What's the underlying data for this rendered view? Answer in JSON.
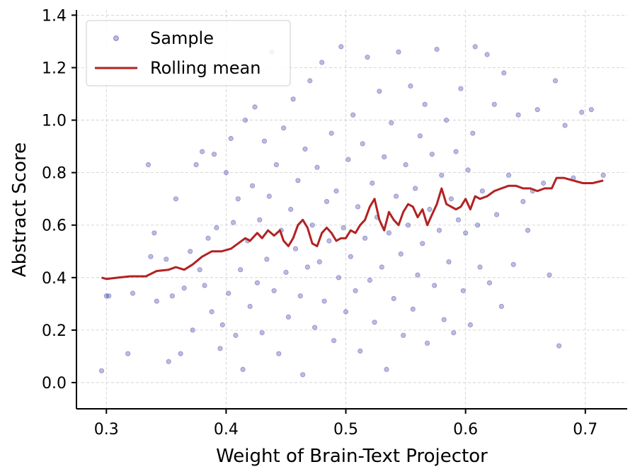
{
  "chart_data": {
    "type": "scatter",
    "title": "",
    "xlabel": "Weight of Brain-Text Projector",
    "ylabel": "Abstract Score",
    "xlim": [
      0.275,
      0.735
    ],
    "ylim": [
      -0.1,
      1.42
    ],
    "xticks": [
      0.3,
      0.4,
      0.5,
      0.6,
      0.7
    ],
    "xtick_labels": [
      "0.3",
      "0.4",
      "0.5",
      "0.6",
      "0.7"
    ],
    "yticks": [
      0.0,
      0.2,
      0.4,
      0.6,
      0.8,
      1.0,
      1.2,
      1.4
    ],
    "ytick_labels": [
      "0.0",
      "0.2",
      "0.4",
      "0.6",
      "0.8",
      "1.0",
      "1.2",
      "1.4"
    ],
    "grid": true,
    "legend_position": "top-left",
    "series": [
      {
        "name": "Sample",
        "kind": "scatter",
        "color": "#3b3ba6",
        "points": [
          [
            0.296,
            0.045
          ],
          [
            0.3,
            0.33
          ],
          [
            0.302,
            0.33
          ],
          [
            0.318,
            0.11
          ],
          [
            0.322,
            0.34
          ],
          [
            0.335,
            0.83
          ],
          [
            0.337,
            0.48
          ],
          [
            0.34,
            0.57
          ],
          [
            0.342,
            0.31
          ],
          [
            0.35,
            0.47
          ],
          [
            0.352,
            0.08
          ],
          [
            0.355,
            0.33
          ],
          [
            0.358,
            0.7
          ],
          [
            0.362,
            0.11
          ],
          [
            0.365,
            0.36
          ],
          [
            0.37,
            0.5
          ],
          [
            0.372,
            0.2
          ],
          [
            0.375,
            0.83
          ],
          [
            0.378,
            0.43
          ],
          [
            0.38,
            0.88
          ],
          [
            0.382,
            0.37
          ],
          [
            0.385,
            0.55
          ],
          [
            0.388,
            0.27
          ],
          [
            0.39,
            0.87
          ],
          [
            0.392,
            0.59
          ],
          [
            0.395,
            0.13
          ],
          [
            0.397,
            0.22
          ],
          [
            0.4,
            0.8
          ],
          [
            0.402,
            0.34
          ],
          [
            0.404,
            0.93
          ],
          [
            0.406,
            0.61
          ],
          [
            0.408,
            0.18
          ],
          [
            0.41,
            0.7
          ],
          [
            0.412,
            0.43
          ],
          [
            0.414,
            0.05
          ],
          [
            0.416,
            1.0
          ],
          [
            0.418,
            0.54
          ],
          [
            0.42,
            0.29
          ],
          [
            0.422,
            0.75
          ],
          [
            0.424,
            1.05
          ],
          [
            0.426,
            0.38
          ],
          [
            0.428,
            0.62
          ],
          [
            0.43,
            0.19
          ],
          [
            0.432,
            0.92
          ],
          [
            0.434,
            0.47
          ],
          [
            0.436,
            0.71
          ],
          [
            0.438,
            1.26
          ],
          [
            0.44,
            0.35
          ],
          [
            0.442,
            0.83
          ],
          [
            0.444,
            0.11
          ],
          [
            0.446,
            0.58
          ],
          [
            0.448,
            0.97
          ],
          [
            0.45,
            0.42
          ],
          [
            0.452,
            0.25
          ],
          [
            0.454,
            0.66
          ],
          [
            0.456,
            1.08
          ],
          [
            0.458,
            0.51
          ],
          [
            0.46,
            0.77
          ],
          [
            0.462,
            0.33
          ],
          [
            0.464,
            0.03
          ],
          [
            0.466,
            0.89
          ],
          [
            0.468,
            0.44
          ],
          [
            0.47,
            1.15
          ],
          [
            0.472,
            0.6
          ],
          [
            0.474,
            0.21
          ],
          [
            0.476,
            0.82
          ],
          [
            0.478,
            0.46
          ],
          [
            0.48,
            1.22
          ],
          [
            0.482,
            0.31
          ],
          [
            0.484,
            0.69
          ],
          [
            0.486,
            0.54
          ],
          [
            0.488,
            0.95
          ],
          [
            0.49,
            0.16
          ],
          [
            0.492,
            0.73
          ],
          [
            0.494,
            0.4
          ],
          [
            0.496,
            1.28
          ],
          [
            0.498,
            0.59
          ],
          [
            0.5,
            0.27
          ],
          [
            0.502,
            0.85
          ],
          [
            0.504,
            0.48
          ],
          [
            0.506,
            1.02
          ],
          [
            0.508,
            0.35
          ],
          [
            0.51,
            0.67
          ],
          [
            0.512,
            0.12
          ],
          [
            0.514,
            0.91
          ],
          [
            0.516,
            0.55
          ],
          [
            0.518,
            1.24
          ],
          [
            0.52,
            0.39
          ],
          [
            0.522,
            0.76
          ],
          [
            0.524,
            0.23
          ],
          [
            0.526,
            0.63
          ],
          [
            0.528,
            1.11
          ],
          [
            0.53,
            0.44
          ],
          [
            0.532,
            0.86
          ],
          [
            0.534,
            0.05
          ],
          [
            0.536,
            0.57
          ],
          [
            0.538,
            0.99
          ],
          [
            0.54,
            0.32
          ],
          [
            0.542,
            0.71
          ],
          [
            0.544,
            1.26
          ],
          [
            0.546,
            0.49
          ],
          [
            0.548,
            0.18
          ],
          [
            0.55,
            0.83
          ],
          [
            0.552,
            0.6
          ],
          [
            0.554,
            1.13
          ],
          [
            0.556,
            0.28
          ],
          [
            0.558,
            0.74
          ],
          [
            0.56,
            0.41
          ],
          [
            0.562,
            0.94
          ],
          [
            0.564,
            0.53
          ],
          [
            0.566,
            1.06
          ],
          [
            0.568,
            0.15
          ],
          [
            0.57,
            0.66
          ],
          [
            0.572,
            0.87
          ],
          [
            0.574,
            0.37
          ],
          [
            0.576,
            1.27
          ],
          [
            0.578,
            0.58
          ],
          [
            0.58,
            0.79
          ],
          [
            0.582,
            0.24
          ],
          [
            0.584,
            1.0
          ],
          [
            0.586,
            0.46
          ],
          [
            0.588,
            0.7
          ],
          [
            0.59,
            0.19
          ],
          [
            0.592,
            0.88
          ],
          [
            0.594,
            0.62
          ],
          [
            0.596,
            1.12
          ],
          [
            0.598,
            0.35
          ],
          [
            0.6,
            0.57
          ],
          [
            0.602,
            0.81
          ],
          [
            0.604,
            0.22
          ],
          [
            0.606,
            0.95
          ],
          [
            0.608,
            1.28
          ],
          [
            0.61,
            0.6
          ],
          [
            0.612,
            0.44
          ],
          [
            0.614,
            0.73
          ],
          [
            0.618,
            1.25
          ],
          [
            0.62,
            0.38
          ],
          [
            0.624,
            1.06
          ],
          [
            0.626,
            0.64
          ],
          [
            0.63,
            0.29
          ],
          [
            0.632,
            1.18
          ],
          [
            0.636,
            0.79
          ],
          [
            0.64,
            0.45
          ],
          [
            0.644,
            1.02
          ],
          [
            0.648,
            0.69
          ],
          [
            0.652,
            0.58
          ],
          [
            0.656,
            0.73
          ],
          [
            0.66,
            1.04
          ],
          [
            0.665,
            0.76
          ],
          [
            0.67,
            0.41
          ],
          [
            0.675,
            1.15
          ],
          [
            0.678,
            0.14
          ],
          [
            0.683,
            0.98
          ],
          [
            0.69,
            0.78
          ],
          [
            0.697,
            1.03
          ],
          [
            0.705,
            1.04
          ],
          [
            0.715,
            0.79
          ]
        ]
      },
      {
        "name": "Rolling mean",
        "kind": "line",
        "color": "#b22222",
        "points": [
          [
            0.296,
            0.4
          ],
          [
            0.3,
            0.395
          ],
          [
            0.31,
            0.4
          ],
          [
            0.32,
            0.405
          ],
          [
            0.333,
            0.405
          ],
          [
            0.342,
            0.425
          ],
          [
            0.352,
            0.43
          ],
          [
            0.358,
            0.44
          ],
          [
            0.365,
            0.43
          ],
          [
            0.372,
            0.45
          ],
          [
            0.38,
            0.48
          ],
          [
            0.388,
            0.5
          ],
          [
            0.396,
            0.5
          ],
          [
            0.404,
            0.51
          ],
          [
            0.41,
            0.53
          ],
          [
            0.416,
            0.55
          ],
          [
            0.42,
            0.54
          ],
          [
            0.426,
            0.57
          ],
          [
            0.43,
            0.55
          ],
          [
            0.435,
            0.58
          ],
          [
            0.44,
            0.56
          ],
          [
            0.445,
            0.58
          ],
          [
            0.448,
            0.54
          ],
          [
            0.452,
            0.52
          ],
          [
            0.456,
            0.55
          ],
          [
            0.46,
            0.6
          ],
          [
            0.464,
            0.62
          ],
          [
            0.468,
            0.59
          ],
          [
            0.472,
            0.53
          ],
          [
            0.476,
            0.52
          ],
          [
            0.48,
            0.57
          ],
          [
            0.484,
            0.59
          ],
          [
            0.488,
            0.57
          ],
          [
            0.492,
            0.54
          ],
          [
            0.496,
            0.55
          ],
          [
            0.5,
            0.55
          ],
          [
            0.504,
            0.58
          ],
          [
            0.508,
            0.57
          ],
          [
            0.512,
            0.6
          ],
          [
            0.516,
            0.62
          ],
          [
            0.52,
            0.67
          ],
          [
            0.524,
            0.7
          ],
          [
            0.528,
            0.62
          ],
          [
            0.532,
            0.58
          ],
          [
            0.536,
            0.65
          ],
          [
            0.54,
            0.62
          ],
          [
            0.544,
            0.6
          ],
          [
            0.548,
            0.65
          ],
          [
            0.552,
            0.68
          ],
          [
            0.556,
            0.67
          ],
          [
            0.56,
            0.63
          ],
          [
            0.564,
            0.66
          ],
          [
            0.568,
            0.6
          ],
          [
            0.572,
            0.64
          ],
          [
            0.576,
            0.68
          ],
          [
            0.58,
            0.74
          ],
          [
            0.584,
            0.68
          ],
          [
            0.588,
            0.67
          ],
          [
            0.592,
            0.66
          ],
          [
            0.596,
            0.67
          ],
          [
            0.6,
            0.7
          ],
          [
            0.604,
            0.66
          ],
          [
            0.608,
            0.71
          ],
          [
            0.612,
            0.7
          ],
          [
            0.618,
            0.71
          ],
          [
            0.624,
            0.73
          ],
          [
            0.63,
            0.74
          ],
          [
            0.636,
            0.75
          ],
          [
            0.642,
            0.75
          ],
          [
            0.648,
            0.74
          ],
          [
            0.654,
            0.74
          ],
          [
            0.66,
            0.73
          ],
          [
            0.666,
            0.74
          ],
          [
            0.672,
            0.74
          ],
          [
            0.676,
            0.78
          ],
          [
            0.682,
            0.78
          ],
          [
            0.69,
            0.77
          ],
          [
            0.698,
            0.76
          ],
          [
            0.706,
            0.76
          ],
          [
            0.715,
            0.77
          ]
        ]
      }
    ]
  }
}
